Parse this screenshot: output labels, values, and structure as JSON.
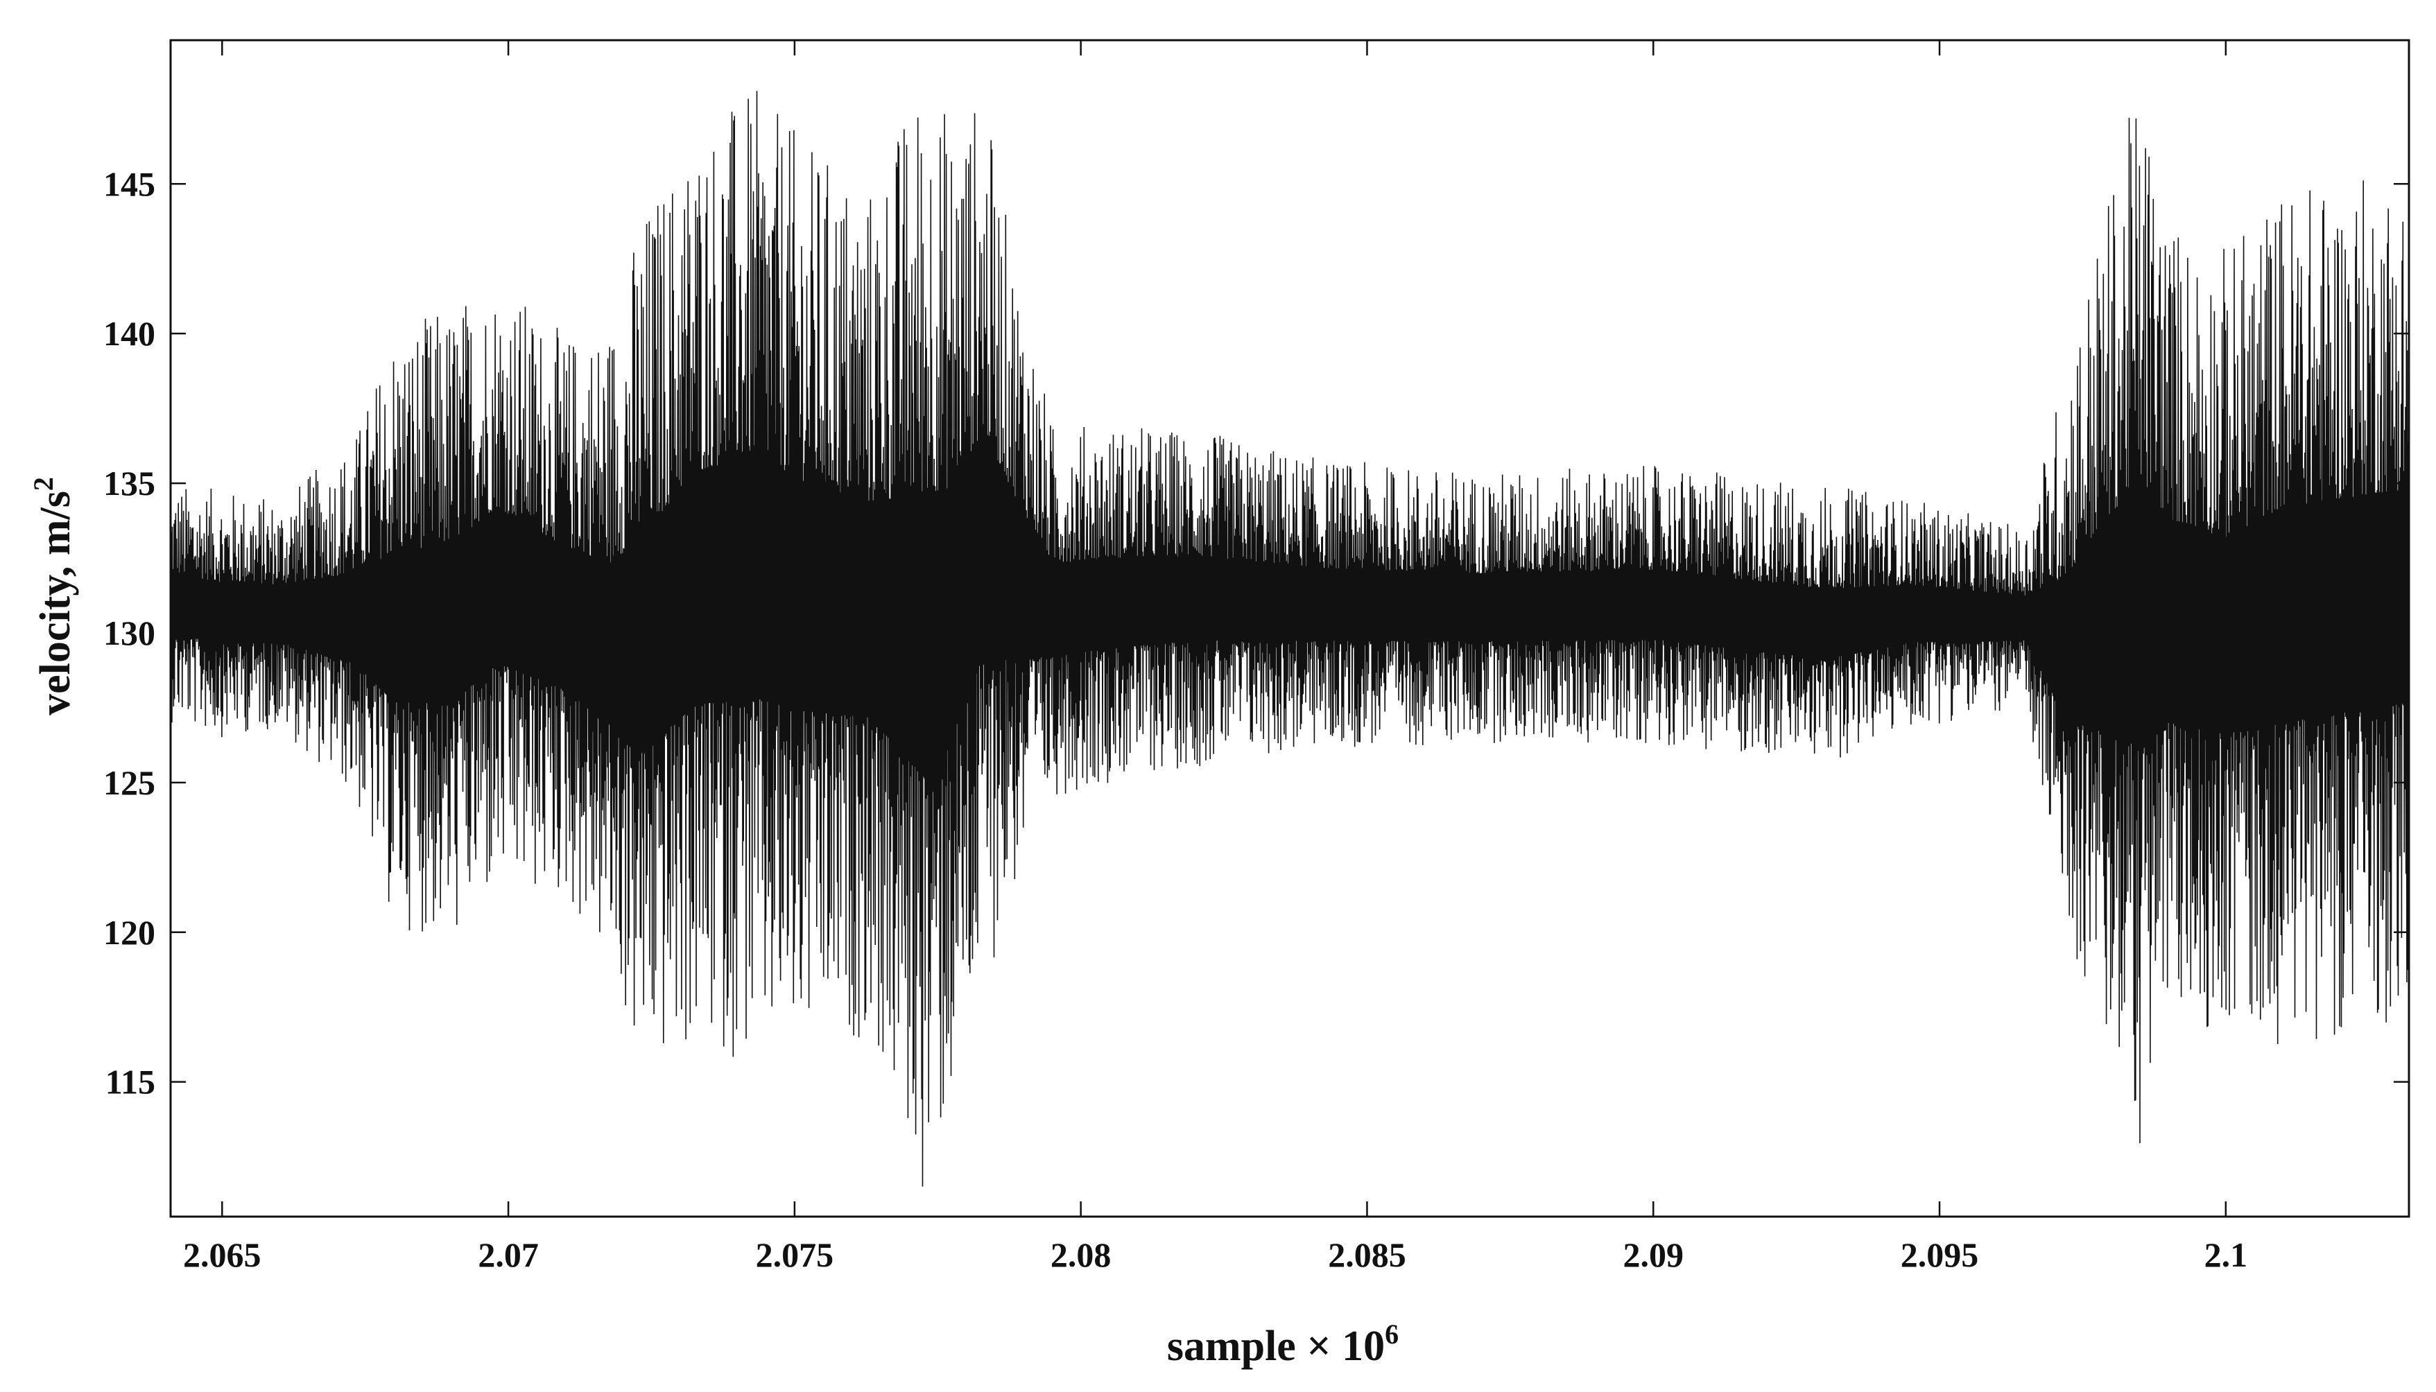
{
  "chart_data": {
    "type": "line",
    "title": "",
    "xlabel": "sample × 10",
    "xlabel_exponent": "6",
    "ylabel": "velocity, m/s",
    "ylabel_exponent": "2",
    "xlim": [
      2.0641,
      2.1032
    ],
    "ylim": [
      110.5,
      149.8
    ],
    "x_ticks": [
      2.065,
      2.07,
      2.075,
      2.08,
      2.085,
      2.09,
      2.095,
      2.1
    ],
    "x_tick_labels": [
      "2.065",
      "2.07",
      "2.075",
      "2.08",
      "2.085",
      "2.09",
      "2.095",
      "2.1"
    ],
    "y_ticks": [
      115,
      120,
      125,
      130,
      135,
      140,
      145
    ],
    "y_tick_labels": [
      "115",
      "120",
      "125",
      "130",
      "135",
      "140",
      "145"
    ],
    "grid": false,
    "legend": "none",
    "line_color": "#111111",
    "series": [
      {
        "x": [
          2.0641,
          2.065,
          2.066,
          2.0673,
          2.068,
          2.069,
          2.0698,
          2.071,
          2.0718,
          2.0723,
          2.0733,
          2.0743,
          2.0752,
          2.0763,
          2.0773,
          2.0777,
          2.0783,
          2.0788,
          2.0795,
          2.0805,
          2.082,
          2.0843,
          2.087,
          2.09,
          2.093,
          2.0945,
          2.0965,
          2.0972,
          2.098,
          2.0985,
          2.099,
          2.1,
          2.101,
          2.1032
        ],
        "upper": [
          135,
          134.8,
          134.5,
          136.5,
          140.2,
          141,
          142,
          140,
          140.5,
          144,
          147,
          148.2,
          146.5,
          145,
          149,
          147.5,
          148,
          143,
          137,
          137,
          136.8,
          135.8,
          135.4,
          135.6,
          135,
          134.5,
          133.5,
          139,
          145,
          148.6,
          144,
          143,
          145,
          145.5
        ],
        "lower": [
          127,
          126.5,
          126.8,
          124.5,
          120.2,
          119.6,
          121.2,
          121,
          118.7,
          115.2,
          116,
          115.6,
          115.9,
          116.5,
          110.8,
          113.7,
          118,
          121,
          124.5,
          125,
          125.5,
          126.1,
          126.3,
          126.3,
          125.6,
          126.8,
          127.5,
          120,
          115.6,
          112.7,
          116.8,
          116.8,
          116.2,
          117
        ]
      }
    ]
  }
}
